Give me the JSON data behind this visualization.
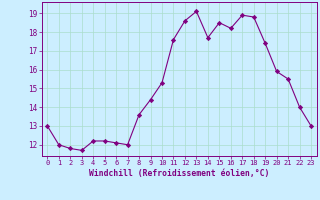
{
  "x": [
    0,
    1,
    2,
    3,
    4,
    5,
    6,
    7,
    8,
    9,
    10,
    11,
    12,
    13,
    14,
    15,
    16,
    17,
    18,
    19,
    20,
    21,
    22,
    23
  ],
  "y": [
    13.0,
    12.0,
    11.8,
    11.7,
    12.2,
    12.2,
    12.1,
    12.0,
    13.6,
    14.4,
    15.3,
    17.6,
    18.6,
    19.1,
    17.7,
    18.5,
    18.2,
    18.9,
    18.8,
    17.4,
    15.9,
    15.5,
    14.0,
    13.0
  ],
  "line_color": "#800080",
  "marker": "D",
  "marker_size": 2.2,
  "bg_color": "#cceeff",
  "grid_color": "#aaddcc",
  "xlabel": "Windchill (Refroidissement éolien,°C)",
  "xlabel_color": "#800080",
  "ylabel_ticks": [
    12,
    13,
    14,
    15,
    16,
    17,
    18,
    19
  ],
  "ylim": [
    11.4,
    19.6
  ],
  "xlim": [
    -0.5,
    23.5
  ],
  "xtick_labels": [
    "0",
    "1",
    "2",
    "3",
    "4",
    "5",
    "6",
    "7",
    "8",
    "9",
    "10",
    "11",
    "12",
    "13",
    "14",
    "15",
    "16",
    "17",
    "18",
    "19",
    "20",
    "21",
    "22",
    "23"
  ],
  "tick_color": "#800080",
  "axis_color": "#800080",
  "xtick_fontsize": 5.0,
  "ytick_fontsize": 5.5,
  "xlabel_fontsize": 5.8
}
